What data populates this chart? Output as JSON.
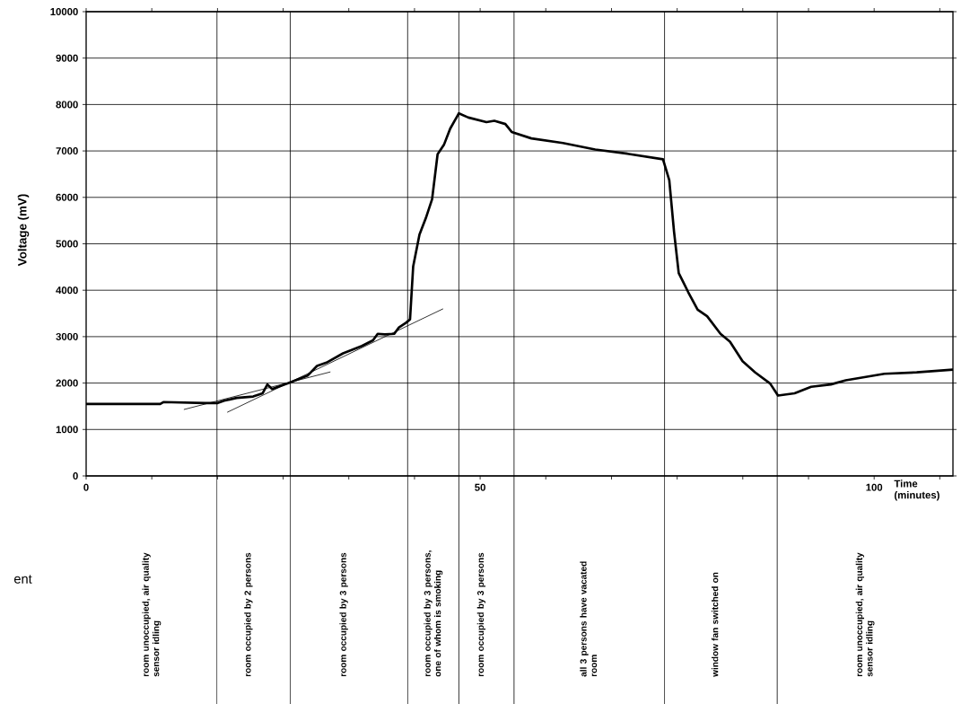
{
  "chart_data": {
    "type": "line",
    "xlabel": "Time (minutes)",
    "ylabel": "Voltage (mV)",
    "xlim": [
      0,
      110
    ],
    "ylim": [
      0,
      10000
    ],
    "xticks": [
      0,
      {
        "value": 8.33,
        "label": null
      },
      {
        "value": 16.67,
        "label": null
      },
      {
        "value": 25,
        "label": null
      },
      {
        "value": 33.33,
        "label": null
      },
      {
        "value": 41.67,
        "label": null
      },
      50,
      {
        "value": 58.33,
        "label": null
      },
      {
        "value": 66.67,
        "label": null
      },
      {
        "value": 75,
        "label": null
      },
      {
        "value": 83.33,
        "label": null
      },
      {
        "value": 91.67,
        "label": null
      },
      100,
      {
        "value": 108.33,
        "label": null
      }
    ],
    "yticks": [
      0,
      1000,
      2000,
      3000,
      4000,
      5000,
      6000,
      7000,
      8000,
      9000,
      10000
    ],
    "grid": "y",
    "marker": "none",
    "line_style": "solid",
    "series": [
      {
        "color": "#000000",
        "x": [
          0,
          9.4,
          9.8,
          15.1,
          16.7,
          17.5,
          19.1,
          21.2,
          22.4,
          23.0,
          23.6,
          25.7,
          28.1,
          29.3,
          30.5,
          32.6,
          35.0,
          36.4,
          37.0,
          37.9,
          39.1,
          39.7,
          40.6,
          41.1,
          41.5,
          42.3,
          43.1,
          43.9,
          44.6,
          45.4,
          46.2,
          47.3,
          48.5,
          50.8,
          51.8,
          53.2,
          54.0,
          56.5,
          60.5,
          64.6,
          68.7,
          73.2,
          74.0,
          74.6,
          75.2,
          76.4,
          77.6,
          78.8,
          80.5,
          81.7,
          83.3,
          84.9,
          86.8,
          87.8,
          89.9,
          92.0,
          94.5,
          96.4,
          101.3,
          105.4,
          110
        ],
        "values": [
          1550,
          1550,
          1590,
          1570,
          1570,
          1620,
          1680,
          1710,
          1780,
          1970,
          1870,
          2000,
          2160,
          2370,
          2440,
          2640,
          2800,
          2920,
          3060,
          3050,
          3060,
          3200,
          3300,
          3370,
          4510,
          5200,
          5550,
          5960,
          6930,
          7130,
          7480,
          7810,
          7720,
          7620,
          7650,
          7580,
          7410,
          7270,
          7170,
          7030,
          6940,
          6820,
          6370,
          5270,
          4370,
          3960,
          3580,
          3440,
          3060,
          2890,
          2470,
          2230,
          1990,
          1730,
          1780,
          1920,
          1970,
          2060,
          2200,
          2230,
          2290
        ]
      },
      {
        "color": "#000000",
        "x": [
          12.4,
          31.0
        ],
        "values": [
          1430,
          2240
        ]
      },
      {
        "color": "#000000",
        "x": [
          17.9,
          45.3
        ],
        "values": [
          1370,
          3600
        ]
      }
    ],
    "ref_lines": [
      {
        "axis": "x",
        "value": 16.6
      },
      {
        "axis": "x",
        "value": 25.9
      },
      {
        "axis": "x",
        "value": 40.8
      },
      {
        "axis": "x",
        "value": 47.3
      },
      {
        "axis": "x",
        "value": 54.3
      },
      {
        "axis": "x",
        "value": 73.4
      },
      {
        "axis": "x",
        "value": 87.7
      }
    ],
    "annotations": [
      "room unoccupied, air quality sensor idling",
      "room occupied by 2 persons",
      "room occupied by 3 persons",
      "room occupied by 3 persons, one of whom is smoking",
      "room occupied by 3 persons",
      "all 3 persons have vacated room",
      "window fan switched on",
      "room unoccupied, air quality sensor idling",
      "ent"
    ]
  }
}
